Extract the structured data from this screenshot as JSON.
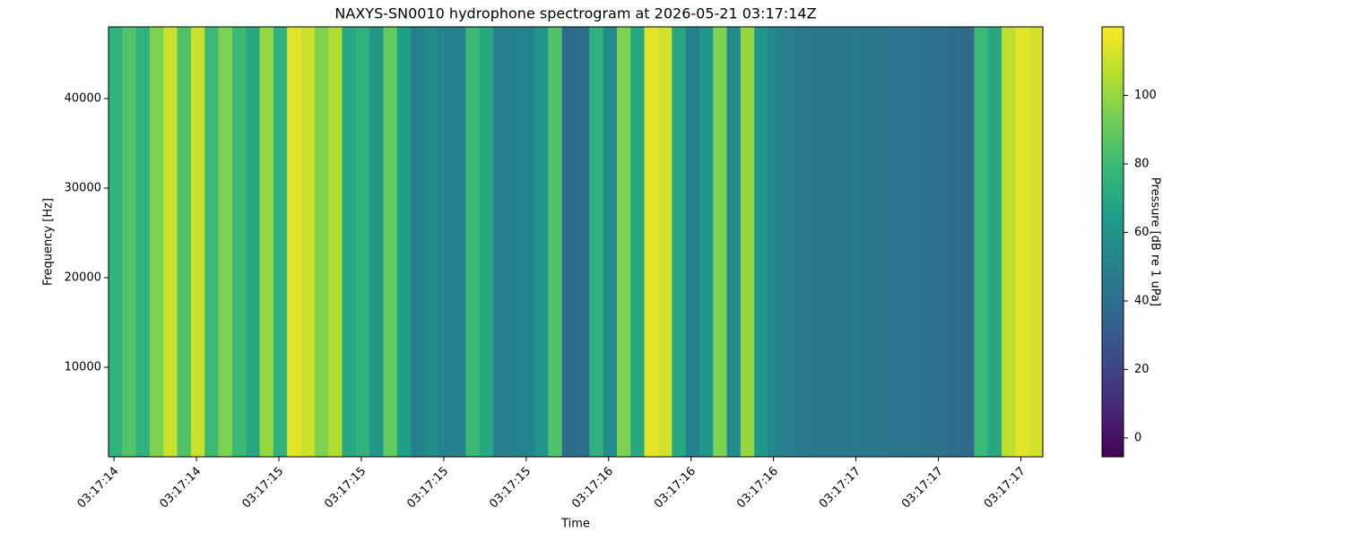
{
  "chart_data": {
    "type": "heatmap",
    "title": "NAXYS-SN0010 hydrophone spectrogram at 2026-05-21 03:17:14Z",
    "x_label": "Time",
    "y_label": "Frequency [Hz]",
    "colorbar_label": "Pressure [dB re 1 uPa]",
    "colormap": "viridis",
    "x": [
      14.455,
      14.505,
      14.555,
      14.605,
      14.655,
      14.705,
      14.755,
      14.805,
      14.855,
      14.905,
      14.955,
      15.005,
      15.055,
      15.105,
      15.155,
      15.205,
      15.255,
      15.305,
      15.355,
      15.405,
      15.455,
      15.505,
      15.555,
      15.605,
      15.655,
      15.705,
      15.755,
      15.805,
      15.855,
      15.905,
      15.955,
      16.005,
      16.055,
      16.105,
      16.155,
      16.205,
      16.255,
      16.305,
      16.355,
      16.405,
      16.455,
      16.505,
      16.555,
      16.605,
      16.655,
      16.705,
      16.755,
      16.805,
      16.855,
      16.905,
      16.955,
      17.005,
      17.055,
      17.105,
      17.155,
      17.205,
      17.255,
      17.305,
      17.355,
      17.405,
      17.455,
      17.505,
      17.555,
      17.605,
      17.655,
      17.705,
      17.755,
      17.805
    ],
    "values": [
      75,
      85,
      75,
      95,
      110,
      85,
      110,
      80,
      95,
      80,
      70,
      100,
      75,
      115,
      110,
      95,
      105,
      70,
      75,
      60,
      90,
      65,
      50,
      55,
      50,
      50,
      80,
      70,
      48,
      50,
      52,
      60,
      85,
      38,
      40,
      75,
      55,
      95,
      70,
      115,
      112,
      70,
      50,
      60,
      95,
      55,
      100,
      60,
      52,
      48,
      46,
      45,
      45,
      45,
      46,
      45,
      45,
      44,
      44,
      43,
      42,
      40,
      38,
      80,
      70,
      108,
      115,
      112
    ],
    "xlim": [
      14.43,
      17.83
    ],
    "xticks": [
      {
        "value": 14.45,
        "label": "03:17:14"
      },
      {
        "value": 14.75,
        "label": "03:17:14"
      },
      {
        "value": 15.05,
        "label": "03:17:15"
      },
      {
        "value": 15.35,
        "label": "03:17:15"
      },
      {
        "value": 15.65,
        "label": "03:17:15"
      },
      {
        "value": 15.95,
        "label": "03:17:15"
      },
      {
        "value": 16.25,
        "label": "03:17:16"
      },
      {
        "value": 16.55,
        "label": "03:17:16"
      },
      {
        "value": 16.85,
        "label": "03:17:16"
      },
      {
        "value": 17.15,
        "label": "03:17:17"
      },
      {
        "value": 17.45,
        "label": "03:17:17"
      },
      {
        "value": 17.75,
        "label": "03:17:17"
      }
    ],
    "ylim": [
      0,
      48000
    ],
    "yticks": [
      10000,
      20000,
      30000,
      40000
    ],
    "clim": [
      -5.5,
      120
    ],
    "cticks": [
      0,
      20,
      40,
      60,
      80,
      100
    ]
  }
}
